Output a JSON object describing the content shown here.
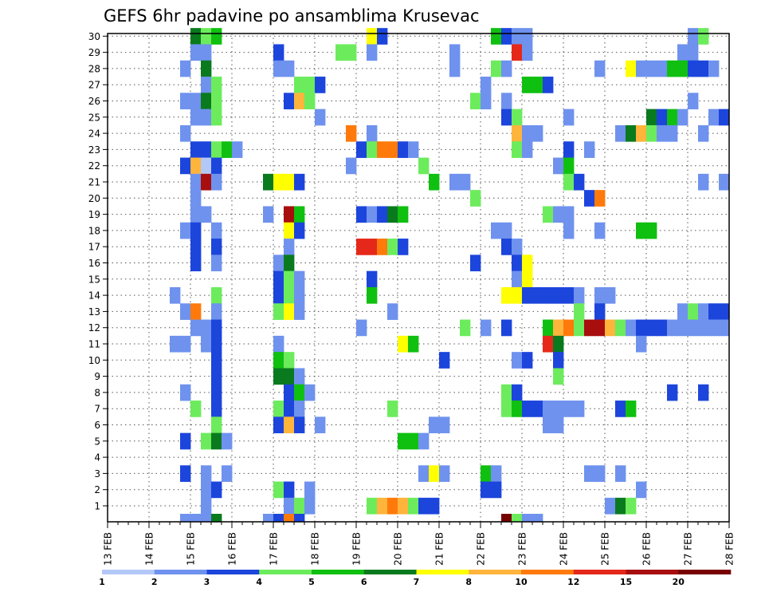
{
  "chart_data": {
    "type": "heatmap",
    "title": "GEFS 6hr padavine po ansamblima Krusevac",
    "xlabel": "",
    "ylabel": "",
    "x_tick_labels": [
      "13 FEB",
      "14 FEB",
      "15 FEB",
      "16 FEB",
      "17 FEB",
      "18 FEB",
      "19 FEB",
      "20 FEB",
      "21 FEB",
      "22 FEB",
      "23 FEB",
      "24 FEB",
      "25 FEB",
      "26 FEB",
      "27 FEB",
      "28 FEB"
    ],
    "y_tick_labels": [
      "1",
      "2",
      "3",
      "4",
      "5",
      "6",
      "7",
      "8",
      "9",
      "10",
      "11",
      "12",
      "13",
      "14",
      "15",
      "16",
      "17",
      "18",
      "19",
      "20",
      "21",
      "22",
      "23",
      "24",
      "25",
      "26",
      "27",
      "28",
      "29",
      "30"
    ],
    "x_range_6h_steps": [
      0,
      60
    ],
    "y_range_members": [
      0,
      30
    ],
    "grid": true,
    "legend": {
      "placement": "bottom",
      "thresholds": [
        "1",
        "2",
        "3",
        "4",
        "5",
        "6",
        "7",
        "8",
        "10",
        "12",
        "15",
        "20"
      ],
      "colors": [
        "#b4c8f8",
        "#6f92ee",
        "#1c45dc",
        "#6cec5c",
        "#10c010",
        "#0a7a1e",
        "#ffff00",
        "#ffb43c",
        "#ff7a0a",
        "#e5281a",
        "#a80e0e",
        "#780000"
      ]
    },
    "cells_note": "each cell: [6h step index from 13 FEB 00Z, ensemble member (0 = control row), precipitation class index into legend colors]",
    "cells": [
      [
        8,
        30,
        5
      ],
      [
        9,
        30,
        3
      ],
      [
        10,
        30,
        4
      ],
      [
        25,
        30,
        6
      ],
      [
        26,
        30,
        2
      ],
      [
        37,
        30,
        4
      ],
      [
        38,
        30,
        2
      ],
      [
        39,
        30,
        1
      ],
      [
        40,
        30,
        1
      ],
      [
        56,
        30,
        1
      ],
      [
        57,
        30,
        3
      ],
      [
        8,
        29,
        1
      ],
      [
        9,
        29,
        1
      ],
      [
        16,
        29,
        2
      ],
      [
        22,
        29,
        3
      ],
      [
        23,
        29,
        3
      ],
      [
        25,
        29,
        1
      ],
      [
        33,
        29,
        1
      ],
      [
        39,
        29,
        9
      ],
      [
        40,
        29,
        1
      ],
      [
        55,
        29,
        1
      ],
      [
        56,
        29,
        1
      ],
      [
        7,
        28,
        1
      ],
      [
        9,
        28,
        5
      ],
      [
        16,
        28,
        1
      ],
      [
        17,
        28,
        1
      ],
      [
        33,
        28,
        1
      ],
      [
        37,
        28,
        3
      ],
      [
        38,
        28,
        1
      ],
      [
        47,
        28,
        1
      ],
      [
        50,
        28,
        6
      ],
      [
        51,
        28,
        1
      ],
      [
        52,
        28,
        1
      ],
      [
        53,
        28,
        1
      ],
      [
        54,
        28,
        4
      ],
      [
        55,
        28,
        4
      ],
      [
        56,
        28,
        2
      ],
      [
        57,
        28,
        2
      ],
      [
        58,
        28,
        1
      ],
      [
        9,
        27,
        1
      ],
      [
        10,
        27,
        3
      ],
      [
        18,
        27,
        3
      ],
      [
        19,
        27,
        3
      ],
      [
        20,
        27,
        2
      ],
      [
        36,
        27,
        1
      ],
      [
        40,
        27,
        4
      ],
      [
        41,
        27,
        4
      ],
      [
        42,
        27,
        2
      ],
      [
        7,
        26,
        1
      ],
      [
        8,
        26,
        1
      ],
      [
        9,
        26,
        5
      ],
      [
        10,
        26,
        3
      ],
      [
        17,
        26,
        2
      ],
      [
        18,
        26,
        7
      ],
      [
        19,
        26,
        3
      ],
      [
        35,
        26,
        3
      ],
      [
        36,
        26,
        1
      ],
      [
        38,
        26,
        1
      ],
      [
        56,
        26,
        1
      ],
      [
        8,
        25,
        1
      ],
      [
        9,
        25,
        1
      ],
      [
        10,
        25,
        3
      ],
      [
        20,
        25,
        1
      ],
      [
        38,
        25,
        2
      ],
      [
        39,
        25,
        3
      ],
      [
        44,
        25,
        1
      ],
      [
        52,
        25,
        5
      ],
      [
        53,
        25,
        2
      ],
      [
        54,
        25,
        4
      ],
      [
        55,
        25,
        1
      ],
      [
        58,
        25,
        1
      ],
      [
        59,
        25,
        2
      ],
      [
        7,
        24,
        1
      ],
      [
        23,
        24,
        8
      ],
      [
        25,
        24,
        1
      ],
      [
        39,
        24,
        7
      ],
      [
        40,
        24,
        1
      ],
      [
        41,
        24,
        1
      ],
      [
        49,
        24,
        1
      ],
      [
        50,
        24,
        5
      ],
      [
        51,
        24,
        7
      ],
      [
        52,
        24,
        3
      ],
      [
        53,
        24,
        1
      ],
      [
        54,
        24,
        1
      ],
      [
        57,
        24,
        1
      ],
      [
        8,
        23,
        2
      ],
      [
        9,
        23,
        2
      ],
      [
        10,
        23,
        3
      ],
      [
        11,
        23,
        4
      ],
      [
        12,
        23,
        1
      ],
      [
        24,
        23,
        2
      ],
      [
        25,
        23,
        3
      ],
      [
        26,
        23,
        8
      ],
      [
        27,
        23,
        8
      ],
      [
        28,
        23,
        2
      ],
      [
        29,
        23,
        1
      ],
      [
        39,
        23,
        3
      ],
      [
        40,
        23,
        1
      ],
      [
        44,
        23,
        2
      ],
      [
        46,
        23,
        1
      ],
      [
        7,
        22,
        2
      ],
      [
        8,
        22,
        7
      ],
      [
        9,
        22,
        0
      ],
      [
        10,
        22,
        2
      ],
      [
        23,
        22,
        1
      ],
      [
        30,
        22,
        3
      ],
      [
        43,
        22,
        1
      ],
      [
        44,
        22,
        4
      ],
      [
        8,
        21,
        1
      ],
      [
        9,
        21,
        10
      ],
      [
        10,
        21,
        1
      ],
      [
        15,
        21,
        5
      ],
      [
        16,
        21,
        6
      ],
      [
        17,
        21,
        6
      ],
      [
        18,
        21,
        2
      ],
      [
        31,
        21,
        4
      ],
      [
        33,
        21,
        1
      ],
      [
        34,
        21,
        1
      ],
      [
        44,
        21,
        3
      ],
      [
        45,
        21,
        2
      ],
      [
        57,
        21,
        1
      ],
      [
        59,
        21,
        1
      ],
      [
        8,
        20,
        1
      ],
      [
        35,
        20,
        3
      ],
      [
        46,
        20,
        2
      ],
      [
        47,
        20,
        8
      ],
      [
        8,
        19,
        1
      ],
      [
        9,
        19,
        1
      ],
      [
        15,
        19,
        1
      ],
      [
        17,
        19,
        10
      ],
      [
        18,
        19,
        4
      ],
      [
        24,
        19,
        2
      ],
      [
        25,
        19,
        1
      ],
      [
        26,
        19,
        2
      ],
      [
        27,
        19,
        5
      ],
      [
        28,
        19,
        4
      ],
      [
        42,
        19,
        3
      ],
      [
        43,
        19,
        1
      ],
      [
        44,
        19,
        1
      ],
      [
        7,
        18,
        1
      ],
      [
        8,
        18,
        2
      ],
      [
        10,
        18,
        1
      ],
      [
        17,
        18,
        6
      ],
      [
        18,
        18,
        2
      ],
      [
        37,
        18,
        1
      ],
      [
        38,
        18,
        1
      ],
      [
        44,
        18,
        1
      ],
      [
        47,
        18,
        1
      ],
      [
        51,
        18,
        4
      ],
      [
        52,
        18,
        4
      ],
      [
        8,
        17,
        2
      ],
      [
        10,
        17,
        2
      ],
      [
        17,
        17,
        1
      ],
      [
        24,
        17,
        9
      ],
      [
        25,
        17,
        9
      ],
      [
        26,
        17,
        8
      ],
      [
        27,
        17,
        3
      ],
      [
        28,
        17,
        2
      ],
      [
        38,
        17,
        2
      ],
      [
        39,
        17,
        1
      ],
      [
        8,
        16,
        2
      ],
      [
        10,
        16,
        1
      ],
      [
        16,
        16,
        1
      ],
      [
        17,
        16,
        5
      ],
      [
        35,
        16,
        2
      ],
      [
        39,
        16,
        2
      ],
      [
        40,
        16,
        6
      ],
      [
        16,
        15,
        2
      ],
      [
        17,
        15,
        3
      ],
      [
        18,
        15,
        1
      ],
      [
        25,
        15,
        2
      ],
      [
        39,
        15,
        1
      ],
      [
        40,
        15,
        6
      ],
      [
        6,
        14,
        1
      ],
      [
        10,
        14,
        3
      ],
      [
        16,
        14,
        2
      ],
      [
        17,
        14,
        3
      ],
      [
        18,
        14,
        1
      ],
      [
        25,
        14,
        4
      ],
      [
        38,
        14,
        6
      ],
      [
        39,
        14,
        6
      ],
      [
        40,
        14,
        2
      ],
      [
        41,
        14,
        2
      ],
      [
        42,
        14,
        2
      ],
      [
        43,
        14,
        2
      ],
      [
        44,
        14,
        2
      ],
      [
        45,
        14,
        1
      ],
      [
        47,
        14,
        1
      ],
      [
        48,
        14,
        1
      ],
      [
        7,
        13,
        1
      ],
      [
        8,
        13,
        8
      ],
      [
        10,
        13,
        1
      ],
      [
        16,
        13,
        3
      ],
      [
        17,
        13,
        6
      ],
      [
        18,
        13,
        1
      ],
      [
        27,
        13,
        1
      ],
      [
        45,
        13,
        3
      ],
      [
        47,
        13,
        2
      ],
      [
        55,
        13,
        1
      ],
      [
        56,
        13,
        3
      ],
      [
        57,
        13,
        1
      ],
      [
        58,
        13,
        2
      ],
      [
        59,
        13,
        2
      ],
      [
        8,
        12,
        1
      ],
      [
        9,
        12,
        1
      ],
      [
        10,
        12,
        2
      ],
      [
        24,
        12,
        1
      ],
      [
        34,
        12,
        3
      ],
      [
        36,
        12,
        1
      ],
      [
        38,
        12,
        2
      ],
      [
        42,
        12,
        4
      ],
      [
        43,
        12,
        7
      ],
      [
        44,
        12,
        8
      ],
      [
        45,
        12,
        3
      ],
      [
        46,
        12,
        10
      ],
      [
        47,
        12,
        10
      ],
      [
        48,
        12,
        7
      ],
      [
        49,
        12,
        3
      ],
      [
        50,
        12,
        1
      ],
      [
        51,
        12,
        2
      ],
      [
        52,
        12,
        2
      ],
      [
        53,
        12,
        2
      ],
      [
        54,
        12,
        1
      ],
      [
        55,
        12,
        1
      ],
      [
        56,
        12,
        1
      ],
      [
        57,
        12,
        1
      ],
      [
        58,
        12,
        1
      ],
      [
        59,
        12,
        1
      ],
      [
        6,
        11,
        1
      ],
      [
        7,
        11,
        1
      ],
      [
        9,
        11,
        1
      ],
      [
        10,
        11,
        2
      ],
      [
        16,
        11,
        1
      ],
      [
        28,
        11,
        6
      ],
      [
        29,
        11,
        4
      ],
      [
        42,
        11,
        9
      ],
      [
        43,
        11,
        5
      ],
      [
        51,
        11,
        1
      ],
      [
        10,
        10,
        2
      ],
      [
        16,
        10,
        4
      ],
      [
        17,
        10,
        3
      ],
      [
        32,
        10,
        2
      ],
      [
        39,
        10,
        1
      ],
      [
        40,
        10,
        2
      ],
      [
        43,
        10,
        2
      ],
      [
        10,
        9,
        2
      ],
      [
        16,
        9,
        5
      ],
      [
        17,
        9,
        5
      ],
      [
        18,
        9,
        1
      ],
      [
        43,
        9,
        3
      ],
      [
        7,
        8,
        1
      ],
      [
        10,
        8,
        2
      ],
      [
        17,
        8,
        2
      ],
      [
        18,
        8,
        4
      ],
      [
        19,
        8,
        1
      ],
      [
        38,
        8,
        3
      ],
      [
        39,
        8,
        2
      ],
      [
        54,
        8,
        2
      ],
      [
        57,
        8,
        2
      ],
      [
        8,
        7,
        3
      ],
      [
        10,
        7,
        2
      ],
      [
        16,
        7,
        3
      ],
      [
        17,
        7,
        2
      ],
      [
        18,
        7,
        1
      ],
      [
        27,
        7,
        3
      ],
      [
        38,
        7,
        3
      ],
      [
        39,
        7,
        4
      ],
      [
        40,
        7,
        2
      ],
      [
        41,
        7,
        2
      ],
      [
        42,
        7,
        1
      ],
      [
        43,
        7,
        1
      ],
      [
        44,
        7,
        1
      ],
      [
        45,
        7,
        1
      ],
      [
        49,
        7,
        2
      ],
      [
        50,
        7,
        4
      ],
      [
        10,
        6,
        3
      ],
      [
        16,
        6,
        2
      ],
      [
        17,
        6,
        7
      ],
      [
        18,
        6,
        2
      ],
      [
        20,
        6,
        1
      ],
      [
        31,
        6,
        1
      ],
      [
        32,
        6,
        1
      ],
      [
        42,
        6,
        1
      ],
      [
        43,
        6,
        1
      ],
      [
        7,
        5,
        2
      ],
      [
        9,
        5,
        3
      ],
      [
        10,
        5,
        5
      ],
      [
        11,
        5,
        1
      ],
      [
        28,
        5,
        4
      ],
      [
        29,
        5,
        4
      ],
      [
        30,
        5,
        1
      ],
      [
        7,
        3,
        2
      ],
      [
        9,
        3,
        1
      ],
      [
        11,
        3,
        1
      ],
      [
        30,
        3,
        1
      ],
      [
        31,
        3,
        6
      ],
      [
        32,
        3,
        1
      ],
      [
        36,
        3,
        4
      ],
      [
        37,
        3,
        1
      ],
      [
        46,
        3,
        1
      ],
      [
        47,
        3,
        1
      ],
      [
        49,
        3,
        1
      ],
      [
        9,
        2,
        1
      ],
      [
        10,
        2,
        2
      ],
      [
        16,
        2,
        3
      ],
      [
        17,
        2,
        2
      ],
      [
        19,
        2,
        1
      ],
      [
        36,
        2,
        2
      ],
      [
        37,
        2,
        2
      ],
      [
        51,
        2,
        1
      ],
      [
        9,
        1,
        1
      ],
      [
        17,
        1,
        1
      ],
      [
        18,
        1,
        3
      ],
      [
        19,
        1,
        1
      ],
      [
        25,
        1,
        3
      ],
      [
        26,
        1,
        7
      ],
      [
        27,
        1,
        8
      ],
      [
        28,
        1,
        7
      ],
      [
        29,
        1,
        3
      ],
      [
        30,
        1,
        2
      ],
      [
        31,
        1,
        2
      ],
      [
        48,
        1,
        1
      ],
      [
        49,
        1,
        5
      ],
      [
        50,
        1,
        3
      ],
      [
        7,
        0,
        1
      ],
      [
        8,
        0,
        1
      ],
      [
        9,
        0,
        1
      ],
      [
        10,
        0,
        5
      ],
      [
        15,
        0,
        1
      ],
      [
        16,
        0,
        2
      ],
      [
        17,
        0,
        8
      ],
      [
        18,
        0,
        2
      ],
      [
        38,
        0,
        11
      ],
      [
        39,
        0,
        3
      ],
      [
        40,
        0,
        1
      ],
      [
        41,
        0,
        1
      ]
    ]
  }
}
